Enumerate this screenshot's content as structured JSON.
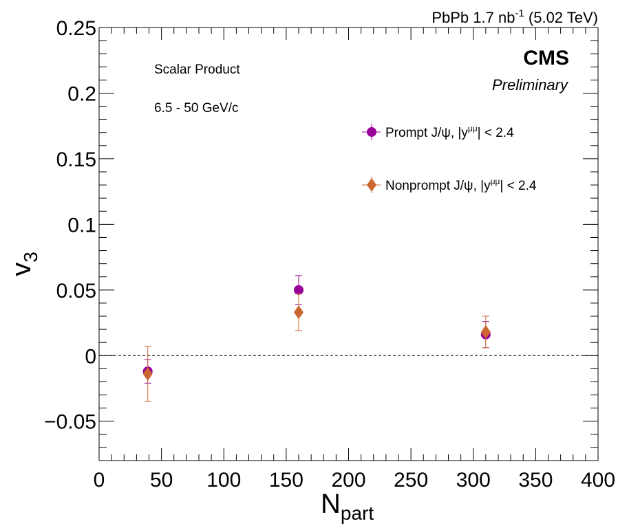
{
  "chart_data": {
    "type": "scatter",
    "header": {
      "prefix": "PbPb 1.7 nb",
      "superscript": "-1",
      "suffix": " (5.02 TeV)"
    },
    "experiment": "CMS",
    "status": "Preliminary",
    "annotations": [
      "Scalar Product",
      "6.5 - 50 GeV/c"
    ],
    "xlabel": {
      "main": "N",
      "sub": "part"
    },
    "ylabel": {
      "main": "v",
      "sub": "3"
    },
    "xlim": [
      0,
      400
    ],
    "ylim": [
      -0.08,
      0.25
    ],
    "xticks": [
      "0",
      "50",
      "100",
      "150",
      "200",
      "250",
      "300",
      "350",
      "400"
    ],
    "yticks": [
      "−0.05",
      "0",
      "0.05",
      "0.1",
      "0.15",
      "0.2",
      "0.25"
    ],
    "reference_line": 0,
    "legend_placement": "upper-right",
    "series": [
      {
        "name": "Prompt J/ψ, |y",
        "name_sup": "μμ",
        "name_tail": "| < 2.4",
        "color": "#990099",
        "marker": "circle",
        "points": [
          {
            "x": 39,
            "y": -0.012,
            "err": 0.009
          },
          {
            "x": 160,
            "y": 0.05,
            "err": 0.011
          },
          {
            "x": 310,
            "y": 0.016,
            "err": 0.01
          }
        ]
      },
      {
        "name": "Nonprompt J/ψ, |y",
        "name_sup": "μμ",
        "name_tail": "| < 2.4",
        "color": "#cc6633",
        "marker": "diamond",
        "points": [
          {
            "x": 39,
            "y": -0.014,
            "err": 0.021
          },
          {
            "x": 160,
            "y": 0.033,
            "err": 0.014
          },
          {
            "x": 310,
            "y": 0.018,
            "err": 0.012
          }
        ]
      }
    ]
  }
}
